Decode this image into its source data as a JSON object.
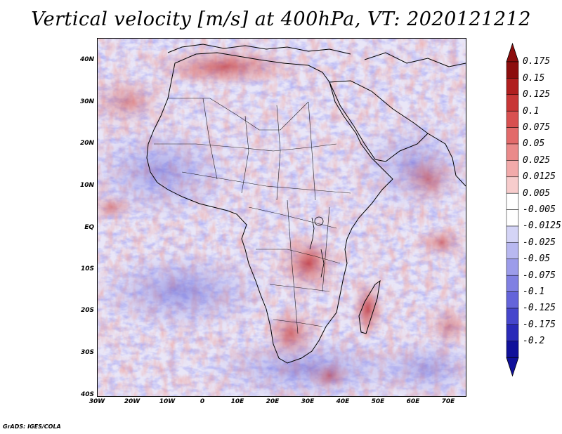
{
  "title": "Vertical velocity [m/s] at 400hPa, VT: 2020121212",
  "footer": "GrADS: IGES/COLA",
  "map": {
    "lat_labels": [
      "40N",
      "30N",
      "20N",
      "10N",
      "EQ",
      "10S",
      "20S",
      "30S",
      "40S"
    ],
    "lon_labels": [
      "30W",
      "20W",
      "10W",
      "0",
      "10E",
      "20E",
      "30E",
      "40E",
      "50E",
      "60E",
      "70E"
    ]
  },
  "colorbar": {
    "labels": [
      "0.175",
      "0.15",
      "0.125",
      "0.1",
      "0.075",
      "0.05",
      "0.025",
      "0.0125",
      "0.005",
      "-0.005",
      "-0.0125",
      "-0.025",
      "-0.05",
      "-0.075",
      "-0.1",
      "-0.125",
      "-0.175",
      "-0.2"
    ],
    "colors": [
      "#8c0d0d",
      "#b01e1e",
      "#c83636",
      "#d85050",
      "#e26a6a",
      "#ea8a8a",
      "#f2aaaa",
      "#f7cccc",
      "#ffffff",
      "#ffffff",
      "#d4d4f6",
      "#b8b8f0",
      "#9c9cea",
      "#8080e2",
      "#6464da",
      "#4646cc",
      "#2a2ab8",
      "#10109a"
    ]
  }
}
